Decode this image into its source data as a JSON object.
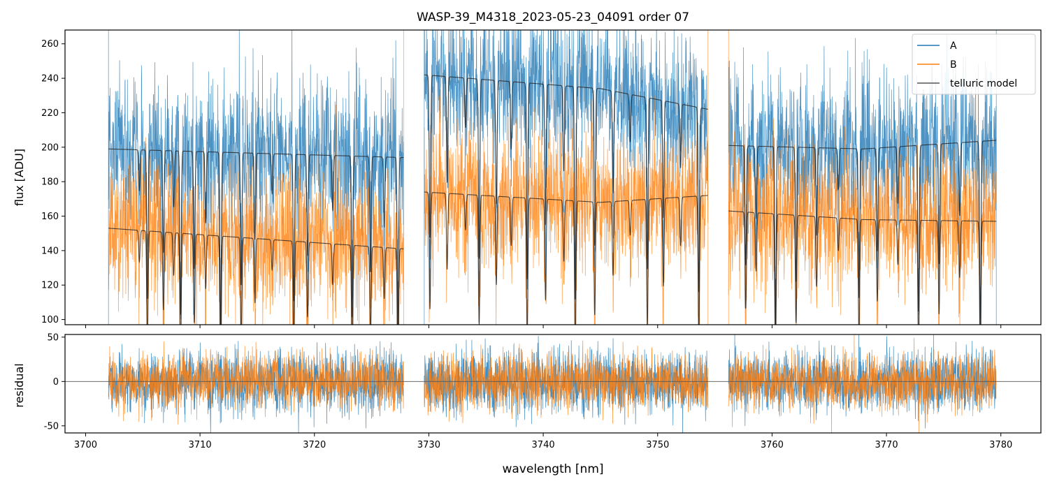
{
  "chart_data": [
    {
      "type": "line",
      "panel": "flux",
      "title": "WASP-39_M4318_2023-05-23_04091  order 07",
      "xlabel": "",
      "ylabel": "flux [ADU]",
      "xlim": [
        3698.2,
        3783.5
      ],
      "ylim": [
        97,
        268
      ],
      "yticks": [
        100,
        120,
        140,
        160,
        180,
        200,
        220,
        240,
        260
      ],
      "xticks": [
        3700,
        3710,
        3720,
        3730,
        3740,
        3750,
        3760,
        3770,
        3780
      ],
      "segments": [
        [
          3702.0,
          3727.8
        ],
        [
          3729.6,
          3754.4
        ],
        [
          3756.2,
          3779.6
        ]
      ],
      "series": [
        {
          "name": "A",
          "color": "#1f77b4",
          "continuum": [
            [
              3702.0,
              199
            ],
            [
              3727.8,
              194
            ],
            [
              3729.6,
              242
            ],
            [
              3745.0,
              234
            ],
            [
              3754.4,
              222
            ],
            [
              3756.2,
              201
            ],
            [
              3768.0,
              199
            ],
            [
              3779.6,
              204
            ]
          ],
          "noise": 22
        },
        {
          "name": "B",
          "color": "#ff7f0e",
          "continuum": [
            [
              3702.0,
              153
            ],
            [
              3727.8,
              141
            ],
            [
              3729.6,
              174
            ],
            [
              3745.0,
              168
            ],
            [
              3754.4,
              172
            ],
            [
              3756.2,
              163
            ],
            [
              3768.0,
              158
            ],
            [
              3779.6,
              157
            ]
          ],
          "noise": 20
        },
        {
          "name": "telluric model",
          "color": "#555555",
          "note": "smooth model with absorption lines"
        }
      ],
      "telluric_lines": [
        3704.7,
        3705.4,
        3706.8,
        3707.7,
        3708.3,
        3709.5,
        3710.5,
        3711.8,
        3713.6,
        3714.8,
        3716.3,
        3718.2,
        3719.4,
        3721.6,
        3723.3,
        3724.9,
        3726.1,
        3727.3,
        3730.1,
        3731.6,
        3733.2,
        3734.4,
        3735.9,
        3737.2,
        3738.6,
        3740.2,
        3741.8,
        3742.8,
        3744.5,
        3746.1,
        3747.6,
        3749.1,
        3750.5,
        3752.0,
        3753.6,
        3757.7,
        3758.6,
        3760.3,
        3762.1,
        3763.9,
        3765.8,
        3767.6,
        3769.2,
        3771.0,
        3772.8,
        3774.6,
        3776.4,
        3778.2
      ],
      "legend": {
        "position": "top-right",
        "entries": [
          "A",
          "B",
          "telluric model"
        ]
      }
    },
    {
      "type": "line",
      "panel": "residual",
      "xlabel": "wavelength [nm]",
      "ylabel": "residual",
      "xlim": [
        3698.2,
        3783.5
      ],
      "ylim": [
        -58,
        53
      ],
      "yticks": [
        -50,
        0,
        50
      ],
      "xticks": [
        3700,
        3710,
        3720,
        3730,
        3740,
        3750,
        3760,
        3770,
        3780
      ],
      "zero_line": 0,
      "series": [
        {
          "name": "A",
          "color": "#1f77b4",
          "noise": 18
        },
        {
          "name": "B",
          "color": "#ff7f0e",
          "noise": 16
        }
      ]
    }
  ]
}
